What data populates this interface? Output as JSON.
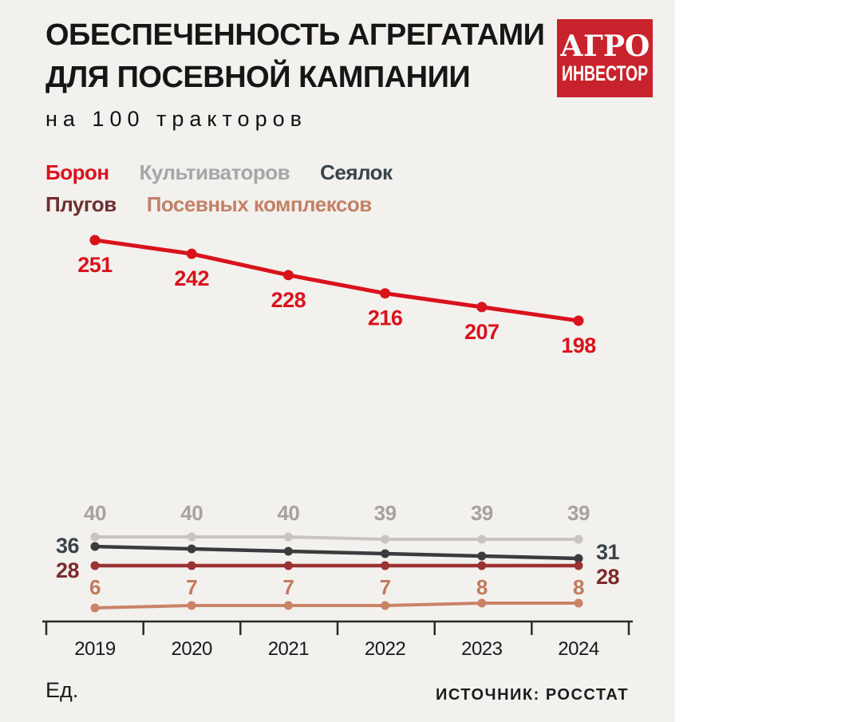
{
  "title": {
    "line1": "ОБЕСПЕЧЕННОСТЬ АГРЕГАТАМИ",
    "line2": "ДЛЯ ПОСЕВНОЙ КАМПАНИИ"
  },
  "subtitle": "на 100 тракторов",
  "logo": {
    "line1": "АГРО",
    "line2": "ИНВЕСТОР",
    "bg_color": "#c8232c",
    "text_color": "#ffffff"
  },
  "legend": {
    "items": [
      {
        "label": "Борон",
        "color": "#d9121c"
      },
      {
        "label": "Культиваторов",
        "color": "#a4a7a9"
      },
      {
        "label": "Сеялок",
        "color": "#3a444d"
      },
      {
        "label": "Плугов",
        "color": "#6e2e30"
      },
      {
        "label": "Посевных комплексов",
        "color": "#c28266"
      }
    ]
  },
  "chart_data": {
    "type": "line",
    "x": [
      "2019",
      "2020",
      "2021",
      "2022",
      "2023",
      "2024"
    ],
    "series": [
      {
        "name": "Борон",
        "color": "#d9121c",
        "label_color": "#d9121c",
        "values": [
          251,
          242,
          228,
          216,
          207,
          198
        ],
        "point_labels": [
          "251",
          "242",
          "228",
          "216",
          "207",
          "198"
        ]
      },
      {
        "name": "Культиваторов",
        "color": "#c8c4bf",
        "label_color": "#a6a29e",
        "values": [
          40,
          40,
          40,
          39,
          39,
          39
        ],
        "point_labels": [
          "40",
          "40",
          "40",
          "39",
          "39",
          "39"
        ]
      },
      {
        "name": "Сеялок",
        "color": "#3b3b3d",
        "label_color": "#39434b",
        "values": [
          36,
          35,
          34,
          33,
          32,
          31
        ],
        "first_label": "36",
        "last_label": "31"
      },
      {
        "name": "Плугов",
        "color": "#9b3233",
        "label_color": "#7c2b2c",
        "values": [
          28,
          28,
          28,
          28,
          28,
          28
        ],
        "first_label": "28",
        "last_label": "28"
      },
      {
        "name": "Посевных комплексов",
        "color": "#c98366",
        "label_color": "#c17a5a",
        "values": [
          6,
          7,
          7,
          7,
          8,
          8
        ],
        "point_labels": [
          "6",
          "7",
          "7",
          "7",
          "8",
          "8"
        ]
      }
    ],
    "title": "ОБЕСПЕЧЕННОСТЬ АГРЕГАТАМИ ДЛЯ ПОСЕВНОЙ КАМПАНИИ",
    "subtitle": "на 100 тракторов",
    "xlabel": "",
    "ylabel": "Ед.",
    "grid": false,
    "legend_position": "top-left"
  },
  "footer": {
    "units_label": "Ед.",
    "source": "ИСТОЧНИК: РОССТАТ"
  }
}
